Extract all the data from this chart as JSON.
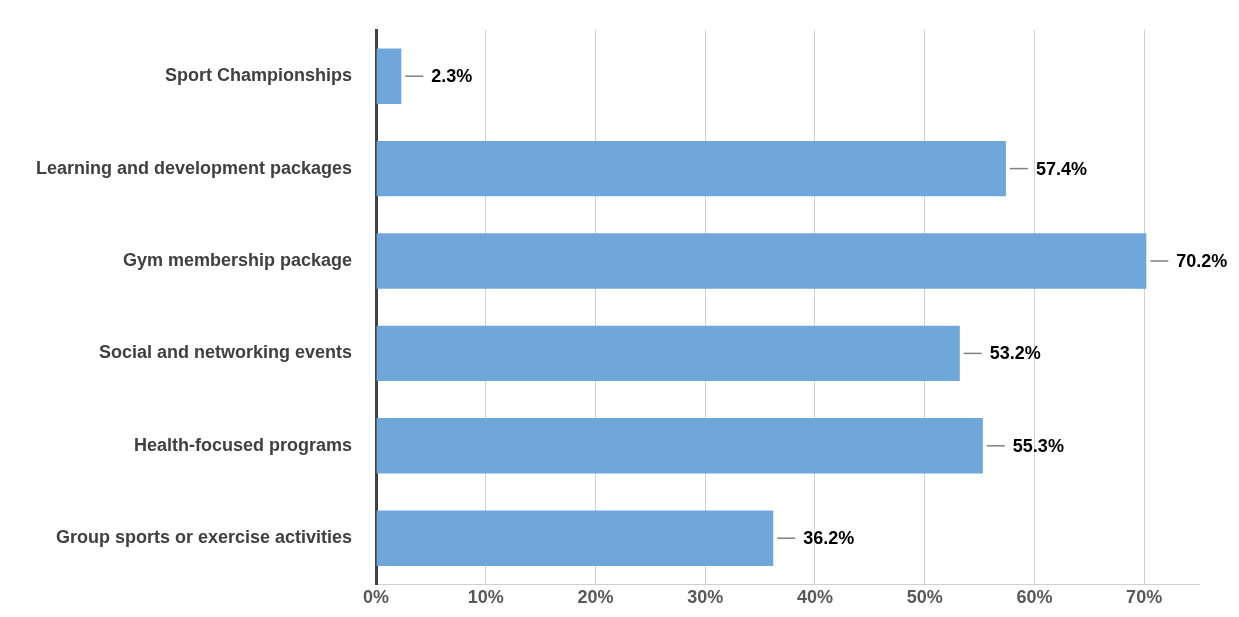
{
  "chart_data": {
    "type": "bar",
    "orientation": "horizontal",
    "categories": [
      "Sport Championships",
      "Learning and development packages",
      "Gym membership package",
      "Social and networking events",
      "Health-focused programs",
      "Group sports or exercise activities"
    ],
    "values": [
      2.3,
      57.4,
      70.2,
      53.2,
      55.3,
      36.2
    ],
    "value_labels": [
      "2.3%",
      "57.4%",
      "70.2%",
      "53.2%",
      "55.3%",
      "36.2%"
    ],
    "color": "#70a7db",
    "xlim": [
      0,
      75
    ],
    "xticks": [
      {
        "value": 0,
        "label": "0%"
      },
      {
        "value": 10,
        "label": "10%"
      },
      {
        "value": 20,
        "label": "20%"
      },
      {
        "value": 30,
        "label": "30%"
      },
      {
        "value": 40,
        "label": "40%"
      },
      {
        "value": 50,
        "label": "50%"
      },
      {
        "value": 60,
        "label": "60%"
      },
      {
        "value": 70,
        "label": "70%"
      }
    ],
    "grid": "x",
    "legend": false
  }
}
